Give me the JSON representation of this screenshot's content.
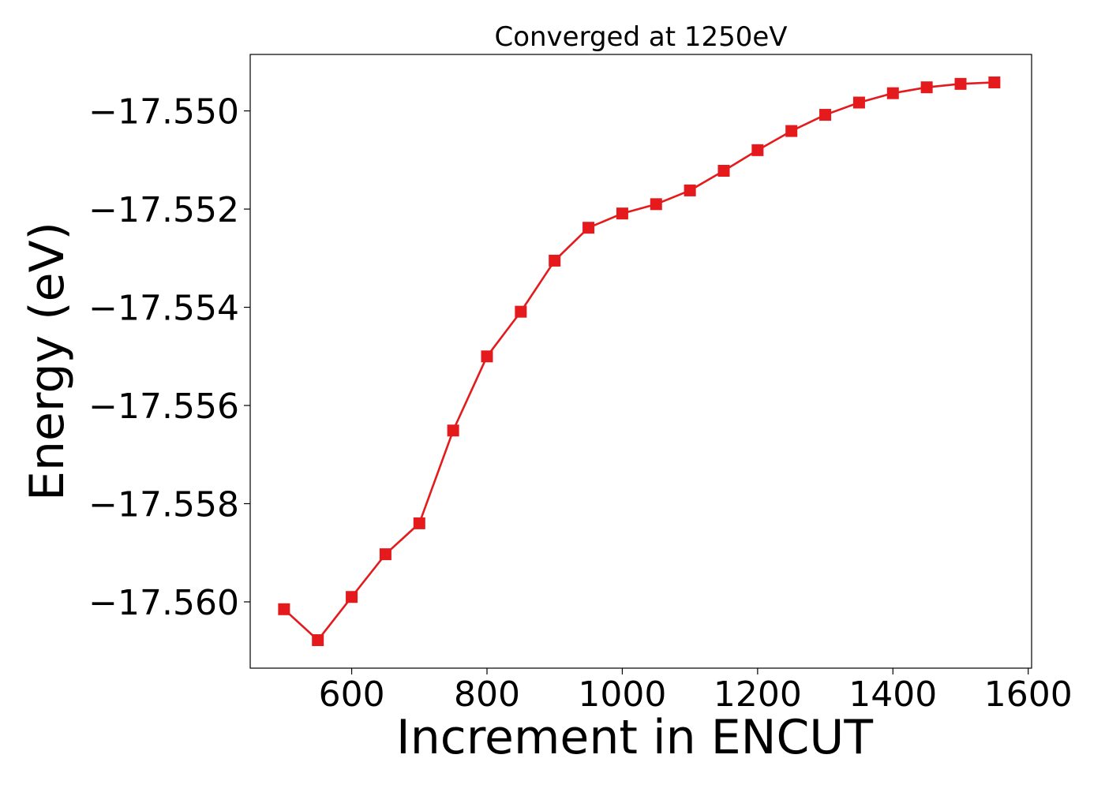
{
  "chart_data": {
    "type": "line",
    "title": "Converged at 1250eV",
    "xlabel": "Increment in ENCUT",
    "ylabel": "Energy (eV)",
    "xlim": [
      450,
      1605
    ],
    "ylim": [
      -17.56135,
      -17.54885
    ],
    "xticks": [
      600,
      800,
      1000,
      1200,
      1400,
      1600
    ],
    "yticks": [
      -17.56,
      -17.558,
      -17.556,
      -17.554,
      -17.552,
      -17.55
    ],
    "ytick_labels": [
      "−17.560",
      "−17.558",
      "−17.556",
      "−17.554",
      "−17.552",
      "−17.550"
    ],
    "grid": false,
    "marker": "square",
    "color": "#e41a1c",
    "series": [
      {
        "x": [
          500,
          550,
          600,
          650,
          700,
          750,
          800,
          850,
          900,
          950,
          1000,
          1050,
          1100,
          1150,
          1200,
          1250,
          1300,
          1350,
          1400,
          1450,
          1500,
          1550
        ],
        "y": [
          -17.56015,
          -17.56078,
          -17.5599,
          -17.55903,
          -17.5584,
          -17.55651,
          -17.555,
          -17.55409,
          -17.55305,
          -17.55238,
          -17.55209,
          -17.5519,
          -17.55162,
          -17.55122,
          -17.5508,
          -17.55041,
          -17.55008,
          -17.54983,
          -17.54964,
          -17.54952,
          -17.54945,
          -17.54942
        ]
      }
    ]
  }
}
